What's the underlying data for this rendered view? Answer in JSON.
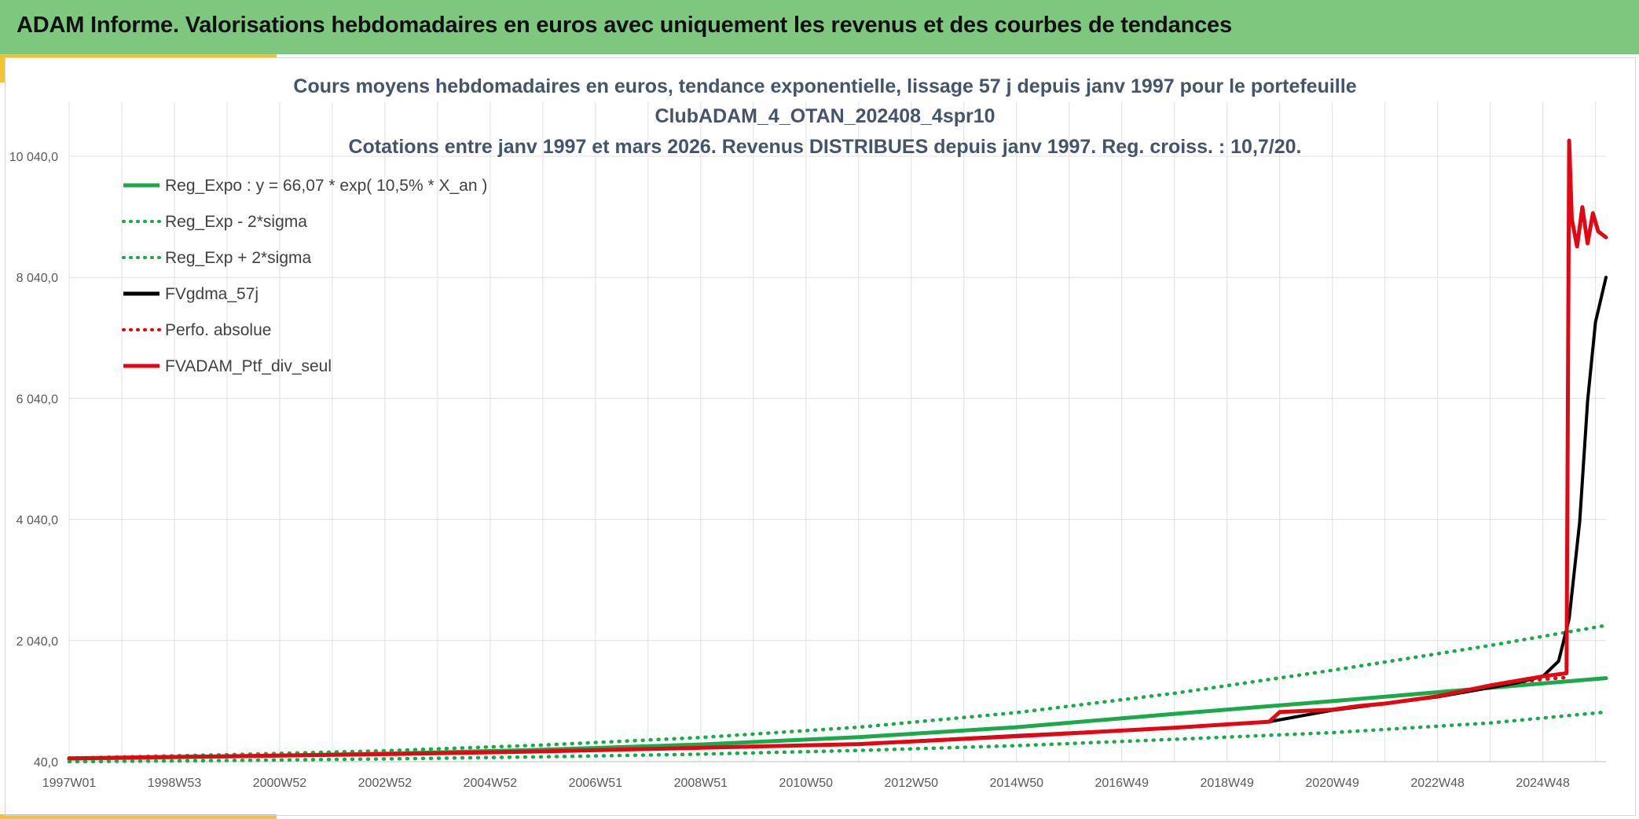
{
  "header": {
    "title": "ADAM Informe. Valorisations hebdomadaires en euros avec uniquement les revenus et des courbes de tendances"
  },
  "colors": {
    "header_bg": "#7dc77f",
    "accent": "#f4c430",
    "green": "#1aaa4a",
    "black": "#000000",
    "red": "#e30613",
    "grid": "#e0e0e0"
  },
  "chart_data": {
    "type": "line",
    "title_lines": [
      "Cours moyens hebdomadaires en euros, tendance exponentielle, lissage 57 j depuis janv 1997 pour le portefeuille",
      "ClubADAM_4_OTAN_202408_4spr10",
      "Cotations entre janv 1997 et mars 2026. Revenus DISTRIBUES depuis janv 1997. Reg. croiss. : 10,7/20."
    ],
    "x_tick_labels": [
      "1997W01",
      "1998W53",
      "2000W52",
      "2002W52",
      "2004W52",
      "2006W51",
      "2008W51",
      "2010W50",
      "2012W50",
      "2014W50",
      "2016W49",
      "2018W49",
      "2020W49",
      "2022W48",
      "2024W48"
    ],
    "x_range": [
      "1997W01",
      "2026W12"
    ],
    "y_tick_labels": [
      "40,0",
      "2 040,0",
      "4 040,0",
      "6 040,0",
      "8 040,0",
      "10 040,0"
    ],
    "ylim": [
      40,
      10040
    ],
    "grid": true,
    "legend_position": "top-left",
    "series": [
      {
        "name": "Reg_Expo : y = 66,07 * exp( 10,5% *  X_an )",
        "color": "#1aaa4a",
        "style": "solid",
        "x": [
          1997.0,
          2000.0,
          2003.0,
          2006.0,
          2009.0,
          2012.0,
          2015.0,
          2018.0,
          2021.0,
          2024.0,
          2026.2
        ],
        "y": [
          90,
          125,
          172,
          237,
          324,
          445,
          610,
          830,
          1040,
          1260,
          1420
        ]
      },
      {
        "name": "Reg_Exp - 2*sigma",
        "color": "#1aaa4a",
        "style": "dotted",
        "x": [
          1997.0,
          2000.0,
          2003.0,
          2006.0,
          2009.0,
          2012.0,
          2015.0,
          2018.0,
          2021.0,
          2024.0,
          2026.2
        ],
        "y": [
          40,
          60,
          85,
          120,
          165,
          225,
          305,
          410,
          520,
          680,
          860
        ]
      },
      {
        "name": "Reg_Exp + 2*sigma",
        "color": "#1aaa4a",
        "style": "dotted",
        "x": [
          1997.0,
          2000.0,
          2003.0,
          2006.0,
          2009.0,
          2012.0,
          2015.0,
          2018.0,
          2021.0,
          2024.0,
          2026.2
        ],
        "y": [
          100,
          155,
          220,
          315,
          440,
          610,
          850,
          1170,
          1550,
          1960,
          2290
        ]
      },
      {
        "name": "FVgdma_57j",
        "color": "#000000",
        "style": "solid",
        "x": [
          1997.0,
          2000.0,
          2003.0,
          2006.0,
          2009.0,
          2012.0,
          2015.0,
          2018.0,
          2019.8,
          2021.0,
          2023.0,
          2024.5,
          2025.0,
          2025.3,
          2025.5,
          2025.7,
          2025.85,
          2026.0,
          2026.2
        ],
        "y": [
          95,
          130,
          165,
          210,
          270,
          330,
          470,
          600,
          700,
          890,
          1110,
          1340,
          1450,
          1700,
          2400,
          4000,
          6000,
          7300,
          8040
        ]
      },
      {
        "name": "Perfo. absolue",
        "color": "#e30613",
        "style": "dotted",
        "x": [
          1997.0,
          2000.0,
          2003.0,
          2006.0,
          2009.0,
          2012.0,
          2015.0,
          2018.0,
          2019.8,
          2020.0,
          2021.0,
          2022.0,
          2023.0,
          2024.0,
          2025.0,
          2025.45
        ],
        "y": [
          95,
          130,
          165,
          210,
          270,
          330,
          460,
          600,
          700,
          860,
          900,
          1000,
          1120,
          1300,
          1400,
          1430
        ]
      },
      {
        "name": "FVADAM_Ptf_div_seul",
        "color": "#e30613",
        "style": "solid",
        "x": [
          1997.0,
          2000.0,
          2003.0,
          2006.0,
          2009.0,
          2012.0,
          2015.0,
          2018.0,
          2019.8,
          2020.0,
          2021.0,
          2021.5,
          2022.0,
          2023.0,
          2024.0,
          2025.0,
          2025.45,
          2025.5,
          2025.55,
          2025.65,
          2025.75,
          2025.85,
          2025.95,
          2026.05,
          2026.2
        ],
        "y": [
          95,
          130,
          165,
          210,
          270,
          330,
          460,
          600,
          700,
          860,
          900,
          960,
          1000,
          1120,
          1300,
          1450,
          1500,
          10300,
          9000,
          8550,
          9200,
          8600,
          9100,
          8800,
          8700
        ]
      }
    ]
  }
}
